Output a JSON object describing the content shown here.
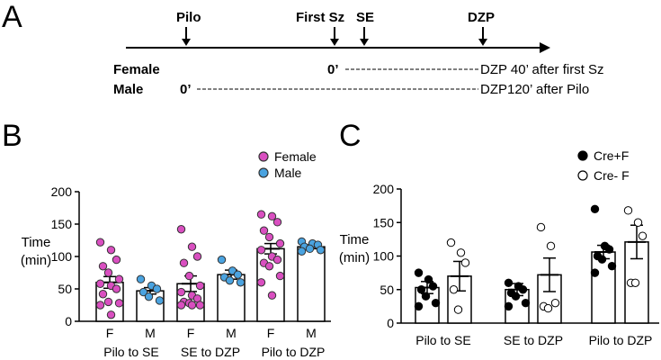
{
  "panels": {
    "a": "A",
    "b": "B",
    "c": "C"
  },
  "timeline": {
    "events": [
      "Pilo",
      "First Sz",
      "SE",
      "DZP"
    ],
    "female_label": "Female",
    "male_label": "Male",
    "female_zero": "0’",
    "male_zero": "0’",
    "female_text": "DZP 40’ after first Sz",
    "male_text": "DZP120’ after Pilo"
  },
  "chart_data": [
    {
      "id": "B",
      "type": "bar",
      "ylabel": "Time (min)",
      "ylabel_lines": [
        "Time",
        "(min)"
      ],
      "ylim": [
        0,
        200
      ],
      "yticks": [
        0,
        50,
        100,
        150,
        200
      ],
      "legend": [
        {
          "name": "Female",
          "color": "#d94fc0"
        },
        {
          "name": "Male",
          "color": "#4aa3e0"
        }
      ],
      "bar_labels": [
        "F",
        "M",
        "F",
        "M",
        "F",
        "M"
      ],
      "group_labels": [
        "Pilo to SE",
        "SE to DZP",
        "Pilo to DZP"
      ],
      "bars": [
        {
          "group": "Pilo to SE",
          "sex": "F",
          "mean": 60,
          "sem": 9,
          "points": [
            122,
            110,
            95,
            85,
            75,
            65,
            58,
            55,
            50,
            42,
            30,
            28,
            25,
            10
          ]
        },
        {
          "group": "Pilo to SE",
          "sex": "M",
          "mean": 47,
          "sem": 5,
          "points": [
            65,
            55,
            50,
            45,
            38,
            32
          ]
        },
        {
          "group": "SE to DZP",
          "sex": "F",
          "mean": 58,
          "sem": 12,
          "points": [
            142,
            115,
            100,
            90,
            70,
            55,
            45,
            40,
            35,
            30,
            28,
            25,
            25,
            25
          ]
        },
        {
          "group": "SE to DZP",
          "sex": "M",
          "mean": 72,
          "sem": 7,
          "points": [
            95,
            78,
            72,
            68,
            63,
            60
          ]
        },
        {
          "group": "Pilo to DZP",
          "sex": "F",
          "mean": 112,
          "sem": 8,
          "points": [
            165,
            162,
            153,
            140,
            130,
            120,
            110,
            100,
            95,
            90,
            85,
            70,
            60,
            40
          ]
        },
        {
          "group": "Pilo to DZP",
          "sex": "M",
          "mean": 115,
          "sem": 3,
          "points": [
            123,
            120,
            118,
            115,
            112,
            110,
            108
          ]
        }
      ]
    },
    {
      "id": "C",
      "type": "bar",
      "ylabel": "Time (min)",
      "ylabel_lines": [
        "Time",
        "(min)"
      ],
      "ylim": [
        0,
        200
      ],
      "yticks": [
        0,
        50,
        100,
        150,
        200
      ],
      "legend": [
        {
          "name": "Cre+F",
          "marker": "filled"
        },
        {
          "name": "Cre- F",
          "marker": "open"
        }
      ],
      "group_labels": [
        "Pilo to SE",
        "SE to DZP",
        "Pilo to DZP"
      ],
      "bars": [
        {
          "group": "Pilo to SE",
          "genotype": "Cre+F",
          "mean": 53,
          "sem": 9,
          "points": [
            75,
            65,
            55,
            50,
            40,
            30,
            25
          ]
        },
        {
          "group": "Pilo to SE",
          "genotype": "Cre- F",
          "mean": 70,
          "sem": 22,
          "points": [
            120,
            105,
            90,
            50,
            20
          ]
        },
        {
          "group": "SE to DZP",
          "genotype": "Cre+F",
          "mean": 50,
          "sem": 9,
          "points": [
            60,
            55,
            50,
            45,
            40,
            30,
            25
          ]
        },
        {
          "group": "SE to DZP",
          "genotype": "Cre- F",
          "mean": 72,
          "sem": 25,
          "points": [
            143,
            115,
            30,
            25,
            22
          ]
        },
        {
          "group": "Pilo to DZP",
          "genotype": "Cre+F",
          "mean": 106,
          "sem": 10,
          "points": [
            170,
            115,
            110,
            100,
            95,
            85,
            75
          ]
        },
        {
          "group": "Pilo to DZP",
          "genotype": "Cre- F",
          "mean": 121,
          "sem": 25,
          "points": [
            168,
            150,
            130,
            60,
            60
          ]
        }
      ]
    }
  ]
}
